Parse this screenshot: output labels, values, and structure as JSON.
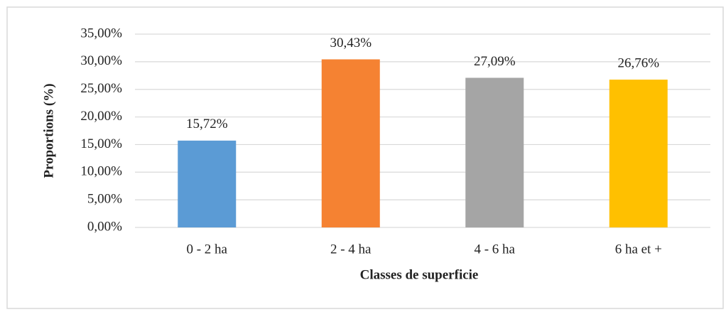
{
  "chart_data": {
    "type": "bar",
    "categories": [
      "0 - 2 ha",
      "2 - 4 ha",
      "4 - 6 ha",
      "6 ha et +"
    ],
    "values": [
      15.72,
      30.43,
      27.09,
      26.76
    ],
    "value_labels": [
      "15,72%",
      "30,43%",
      "27,09%",
      "26,76%"
    ],
    "colors": [
      "#5b9bd5",
      "#f58232",
      "#a5a5a5",
      "#ffc000"
    ],
    "xlabel": "Classes de superficie",
    "ylabel": "Proportions (%)",
    "ylim": [
      0,
      35
    ],
    "yticks": [
      {
        "value": 0,
        "label": "0,00%"
      },
      {
        "value": 5,
        "label": "5,00%"
      },
      {
        "value": 10,
        "label": "10,00%"
      },
      {
        "value": 15,
        "label": "15,00%"
      },
      {
        "value": 20,
        "label": "20,00%"
      },
      {
        "value": 25,
        "label": "25,00%"
      },
      {
        "value": 30,
        "label": "30,00%"
      },
      {
        "value": 35,
        "label": "35,00%"
      }
    ],
    "grid": true
  }
}
